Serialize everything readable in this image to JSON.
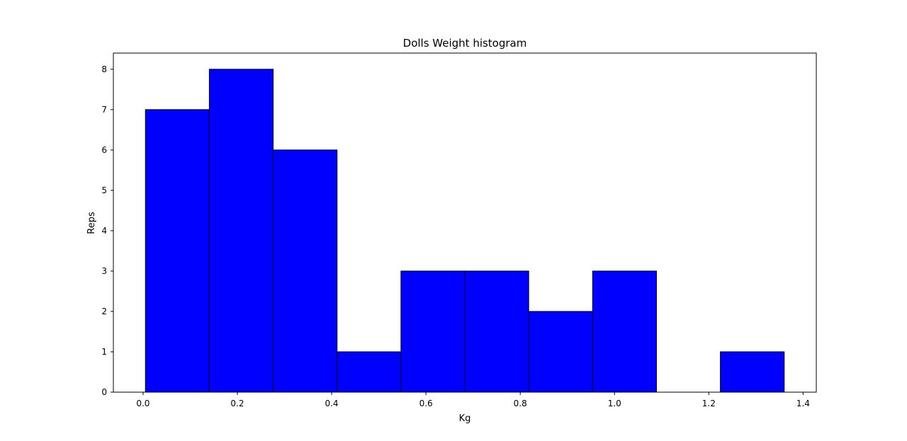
{
  "chart_data": {
    "type": "bar",
    "title": "Dolls Weight histogram",
    "xlabel": "Kg",
    "ylabel": "Reps",
    "bin_edges": [
      0.005,
      0.1405,
      0.276,
      0.4115,
      0.547,
      0.6825,
      0.818,
      0.9535,
      1.089,
      1.2245,
      1.36
    ],
    "values": [
      7,
      8,
      6,
      1,
      3,
      3,
      2,
      3,
      0,
      1
    ],
    "xlim": [
      -0.063,
      1.428
    ],
    "ylim": [
      0,
      8.4
    ],
    "xticks": [
      0.0,
      0.2,
      0.4,
      0.6,
      0.8,
      1.0,
      1.2,
      1.4
    ],
    "xtick_labels": [
      "0.0",
      "0.2",
      "0.4",
      "0.6",
      "0.8",
      "1.0",
      "1.2",
      "1.4"
    ],
    "yticks": [
      0,
      1,
      2,
      3,
      4,
      5,
      6,
      7,
      8
    ],
    "ytick_labels": [
      "0",
      "1",
      "2",
      "3",
      "4",
      "5",
      "6",
      "7",
      "8"
    ],
    "bar_color": "#0000ff",
    "edge_color": "#000000",
    "grid": false,
    "legend": "none"
  }
}
